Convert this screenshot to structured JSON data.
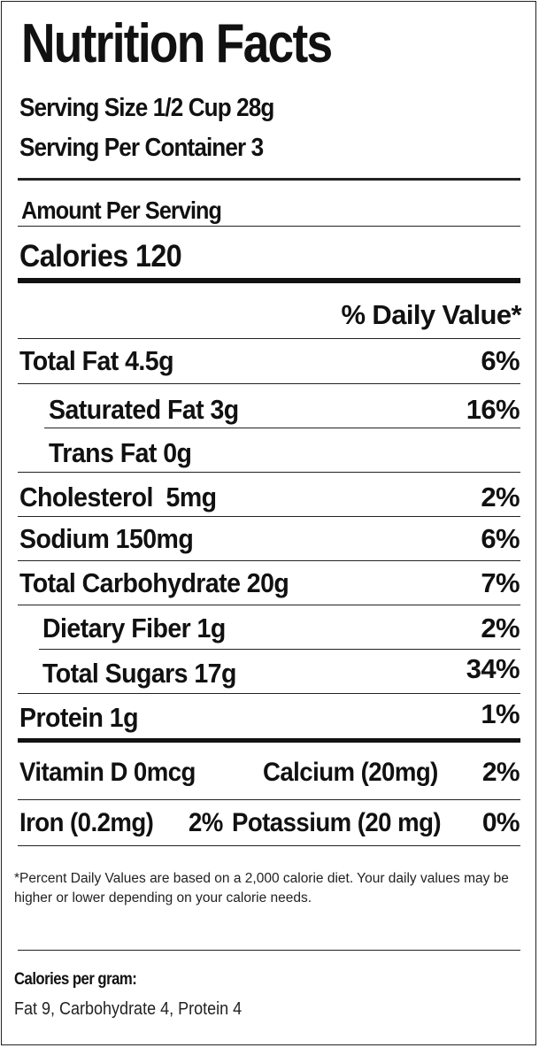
{
  "title": "Nutrition Facts",
  "serving_size": "Serving Size 1/2 Cup 28g",
  "servings_per_container": "Serving Per Container 3",
  "amount_per_serving": "Amount Per Serving",
  "calories": "Calories 120",
  "daily_value_header": "% Daily Value*",
  "nutrients": [
    {
      "label": "Total Fat 4.5g",
      "pct": "6%"
    },
    {
      "label": "Saturated Fat 3g",
      "pct": "16%"
    },
    {
      "label": "Trans Fat 0g",
      "pct": ""
    },
    {
      "label": "Cholesterol  5mg",
      "pct": "2%"
    },
    {
      "label": "Sodium 150mg",
      "pct": "6%"
    },
    {
      "label": "Total Carbohydrate 20g",
      "pct": "7%"
    },
    {
      "label": "Dietary Fiber 1g",
      "pct": "2%"
    },
    {
      "label": "Total Sugars 17g",
      "pct": "34%"
    },
    {
      "label": "Protein 1g",
      "pct": "1%"
    }
  ],
  "vitamins": {
    "vitamin_d": "Vitamin D 0mcg",
    "calcium": "Calcium (20mg)",
    "calcium_pct": "2%",
    "iron": "Iron (0.2mg)",
    "iron_pct": "2%",
    "potassium": "Potassium (20 mg)",
    "potassium_pct": "0%"
  },
  "footnote": "*Percent Daily Values are based on a 2,000 calorie diet. Your daily values may be higher or lower depending on your calorie needs.",
  "calories_per_gram": {
    "heading": "Calories per gram:",
    "values": "Fat 9, Carbohydrate 4, Protein 4"
  }
}
